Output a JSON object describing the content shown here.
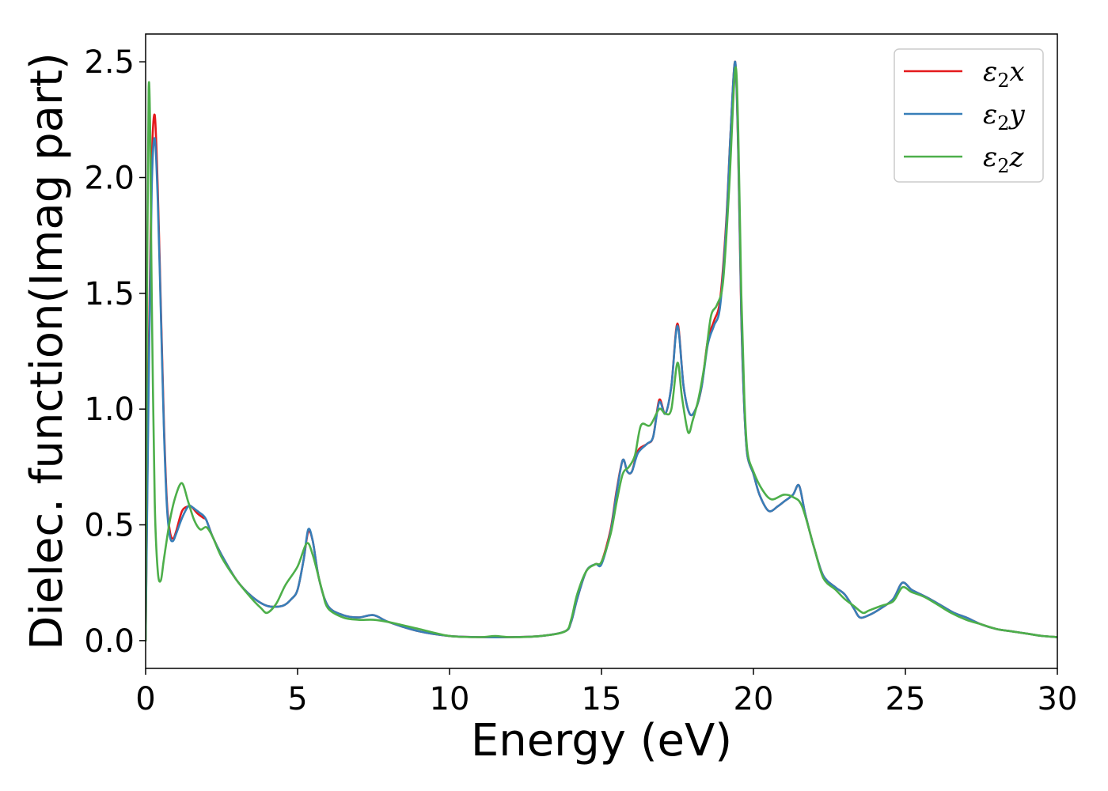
{
  "chart_data": {
    "type": "line",
    "title": "",
    "xlabel": "Energy (eV)",
    "ylabel": "Dielec. function(Imag part)",
    "xlim": [
      0,
      30
    ],
    "ylim": [
      -0.12,
      2.62
    ],
    "xticks": [
      0,
      5,
      10,
      15,
      20,
      25,
      30
    ],
    "xtick_labels": [
      "0",
      "5",
      "10",
      "15",
      "20",
      "25",
      "30"
    ],
    "yticks": [
      0.0,
      0.5,
      1.0,
      1.5,
      2.0,
      2.5
    ],
    "ytick_labels": [
      "0.0",
      "0.5",
      "1.0",
      "1.5",
      "2.0",
      "2.5"
    ],
    "grid": false,
    "legend_position": "top-right",
    "series": [
      {
        "name": "ε2x",
        "color": "#e41a1c",
        "x": [
          0,
          0.1,
          0.2,
          0.3,
          0.4,
          0.5,
          0.6,
          0.7,
          0.8,
          0.9,
          1.0,
          1.2,
          1.4,
          1.5,
          1.7,
          1.9,
          2.0,
          2.2,
          2.5,
          3.0,
          3.5,
          4.0,
          4.5,
          4.8,
          5.0,
          5.2,
          5.35,
          5.5,
          5.7,
          6.0,
          6.5,
          7.0,
          7.5,
          8.0,
          9.0,
          10.0,
          11.0,
          12.0,
          13.0,
          13.8,
          14.0,
          14.2,
          14.5,
          14.8,
          15.0,
          15.3,
          15.5,
          15.7,
          15.85,
          16.0,
          16.2,
          16.5,
          16.7,
          16.9,
          17.1,
          17.3,
          17.5,
          17.7,
          17.9,
          18.1,
          18.3,
          18.5,
          18.7,
          18.9,
          19.1,
          19.25,
          19.4,
          19.5,
          19.6,
          19.7,
          19.8,
          20.0,
          20.2,
          20.5,
          20.8,
          21.0,
          21.3,
          21.5,
          21.7,
          22.0,
          22.3,
          22.7,
          23.0,
          23.3,
          23.5,
          23.8,
          24.2,
          24.6,
          24.9,
          25.2,
          25.5,
          25.8,
          26.2,
          26.6,
          27.0,
          27.5,
          28.0,
          28.5,
          29.0,
          29.5,
          30.0
        ],
        "y": [
          0.0,
          1.2,
          2.05,
          2.27,
          1.95,
          1.45,
          0.95,
          0.6,
          0.47,
          0.44,
          0.47,
          0.56,
          0.58,
          0.58,
          0.55,
          0.53,
          0.52,
          0.45,
          0.37,
          0.26,
          0.19,
          0.15,
          0.15,
          0.18,
          0.22,
          0.35,
          0.47,
          0.43,
          0.27,
          0.15,
          0.11,
          0.1,
          0.11,
          0.08,
          0.04,
          0.02,
          0.015,
          0.015,
          0.02,
          0.04,
          0.08,
          0.18,
          0.3,
          0.33,
          0.34,
          0.48,
          0.65,
          0.78,
          0.73,
          0.73,
          0.82,
          0.85,
          0.88,
          1.04,
          0.98,
          1.1,
          1.37,
          1.1,
          0.98,
          1.0,
          1.1,
          1.3,
          1.38,
          1.47,
          1.8,
          2.2,
          2.5,
          2.1,
          1.4,
          1.0,
          0.8,
          0.72,
          0.63,
          0.56,
          0.58,
          0.6,
          0.63,
          0.67,
          0.55,
          0.4,
          0.28,
          0.23,
          0.2,
          0.14,
          0.1,
          0.11,
          0.14,
          0.18,
          0.25,
          0.22,
          0.2,
          0.18,
          0.15,
          0.12,
          0.1,
          0.07,
          0.05,
          0.04,
          0.03,
          0.02,
          0.015
        ]
      },
      {
        "name": "ε2y",
        "color": "#377eb8",
        "x": [
          0,
          0.1,
          0.2,
          0.3,
          0.4,
          0.5,
          0.6,
          0.7,
          0.8,
          0.9,
          1.0,
          1.2,
          1.4,
          1.5,
          1.7,
          1.9,
          2.0,
          2.2,
          2.5,
          3.0,
          3.5,
          4.0,
          4.5,
          4.8,
          5.0,
          5.2,
          5.35,
          5.5,
          5.7,
          6.0,
          6.5,
          7.0,
          7.5,
          8.0,
          9.0,
          10.0,
          11.0,
          12.0,
          13.0,
          13.8,
          14.0,
          14.2,
          14.5,
          14.8,
          15.0,
          15.3,
          15.5,
          15.7,
          15.85,
          16.0,
          16.2,
          16.5,
          16.7,
          16.9,
          17.1,
          17.3,
          17.5,
          17.7,
          17.9,
          18.1,
          18.3,
          18.5,
          18.7,
          18.9,
          19.1,
          19.25,
          19.4,
          19.5,
          19.6,
          19.7,
          19.8,
          20.0,
          20.2,
          20.5,
          20.8,
          21.0,
          21.3,
          21.5,
          21.7,
          22.0,
          22.3,
          22.7,
          23.0,
          23.3,
          23.5,
          23.8,
          24.2,
          24.6,
          24.9,
          25.2,
          25.5,
          25.8,
          26.2,
          26.6,
          27.0,
          27.5,
          28.0,
          28.5,
          29.0,
          29.5,
          30.0
        ],
        "y": [
          0.0,
          1.1,
          1.95,
          2.17,
          1.9,
          1.42,
          0.92,
          0.58,
          0.45,
          0.43,
          0.46,
          0.53,
          0.58,
          0.58,
          0.56,
          0.54,
          0.52,
          0.45,
          0.37,
          0.26,
          0.19,
          0.15,
          0.15,
          0.18,
          0.22,
          0.35,
          0.48,
          0.43,
          0.27,
          0.15,
          0.11,
          0.1,
          0.11,
          0.08,
          0.04,
          0.02,
          0.015,
          0.015,
          0.02,
          0.04,
          0.08,
          0.18,
          0.3,
          0.33,
          0.33,
          0.47,
          0.64,
          0.78,
          0.73,
          0.73,
          0.81,
          0.85,
          0.88,
          1.03,
          0.98,
          1.1,
          1.36,
          1.1,
          0.98,
          1.0,
          1.1,
          1.28,
          1.36,
          1.44,
          1.78,
          2.2,
          2.5,
          2.12,
          1.42,
          1.0,
          0.8,
          0.72,
          0.63,
          0.56,
          0.58,
          0.6,
          0.63,
          0.67,
          0.55,
          0.4,
          0.28,
          0.23,
          0.2,
          0.14,
          0.1,
          0.11,
          0.14,
          0.18,
          0.25,
          0.22,
          0.2,
          0.18,
          0.15,
          0.12,
          0.1,
          0.07,
          0.05,
          0.04,
          0.03,
          0.02,
          0.015
        ]
      },
      {
        "name": "ε2z",
        "color": "#4daf4a",
        "x": [
          0,
          0.05,
          0.1,
          0.15,
          0.2,
          0.3,
          0.4,
          0.5,
          0.6,
          0.8,
          1.0,
          1.2,
          1.4,
          1.6,
          1.8,
          2.0,
          2.2,
          2.5,
          3.0,
          3.5,
          3.8,
          4.0,
          4.3,
          4.6,
          5.0,
          5.3,
          5.5,
          5.8,
          6.0,
          6.5,
          7.0,
          7.5,
          8.0,
          9.0,
          10.0,
          11.0,
          11.5,
          12.0,
          13.0,
          13.8,
          14.0,
          14.2,
          14.5,
          14.8,
          15.0,
          15.3,
          15.5,
          15.7,
          15.9,
          16.1,
          16.3,
          16.6,
          16.9,
          17.1,
          17.3,
          17.5,
          17.65,
          17.85,
          18.0,
          18.2,
          18.4,
          18.6,
          18.8,
          19.0,
          19.2,
          19.4,
          19.5,
          19.6,
          19.7,
          19.8,
          20.0,
          20.3,
          20.6,
          21.0,
          21.3,
          21.6,
          22.0,
          22.3,
          22.7,
          23.0,
          23.3,
          23.6,
          23.8,
          24.2,
          24.6,
          24.9,
          25.2,
          25.6,
          26.0,
          26.5,
          27.0,
          27.5,
          28.0,
          28.5,
          29.0,
          29.5,
          30.0
        ],
        "y": [
          0.0,
          1.6,
          2.38,
          2.2,
          1.5,
          0.6,
          0.3,
          0.26,
          0.35,
          0.52,
          0.63,
          0.68,
          0.6,
          0.52,
          0.48,
          0.49,
          0.45,
          0.36,
          0.26,
          0.18,
          0.14,
          0.12,
          0.16,
          0.24,
          0.32,
          0.42,
          0.37,
          0.22,
          0.14,
          0.1,
          0.09,
          0.09,
          0.08,
          0.05,
          0.02,
          0.015,
          0.02,
          0.015,
          0.02,
          0.04,
          0.09,
          0.2,
          0.3,
          0.33,
          0.34,
          0.46,
          0.6,
          0.72,
          0.75,
          0.8,
          0.93,
          0.93,
          1.0,
          0.98,
          1.0,
          1.2,
          1.05,
          0.9,
          0.95,
          1.05,
          1.2,
          1.4,
          1.45,
          1.55,
          1.95,
          2.47,
          2.2,
          1.5,
          1.05,
          0.82,
          0.73,
          0.65,
          0.61,
          0.63,
          0.62,
          0.58,
          0.4,
          0.27,
          0.22,
          0.18,
          0.15,
          0.12,
          0.13,
          0.15,
          0.17,
          0.23,
          0.21,
          0.19,
          0.16,
          0.12,
          0.09,
          0.07,
          0.05,
          0.04,
          0.03,
          0.02,
          0.015
        ]
      }
    ]
  }
}
